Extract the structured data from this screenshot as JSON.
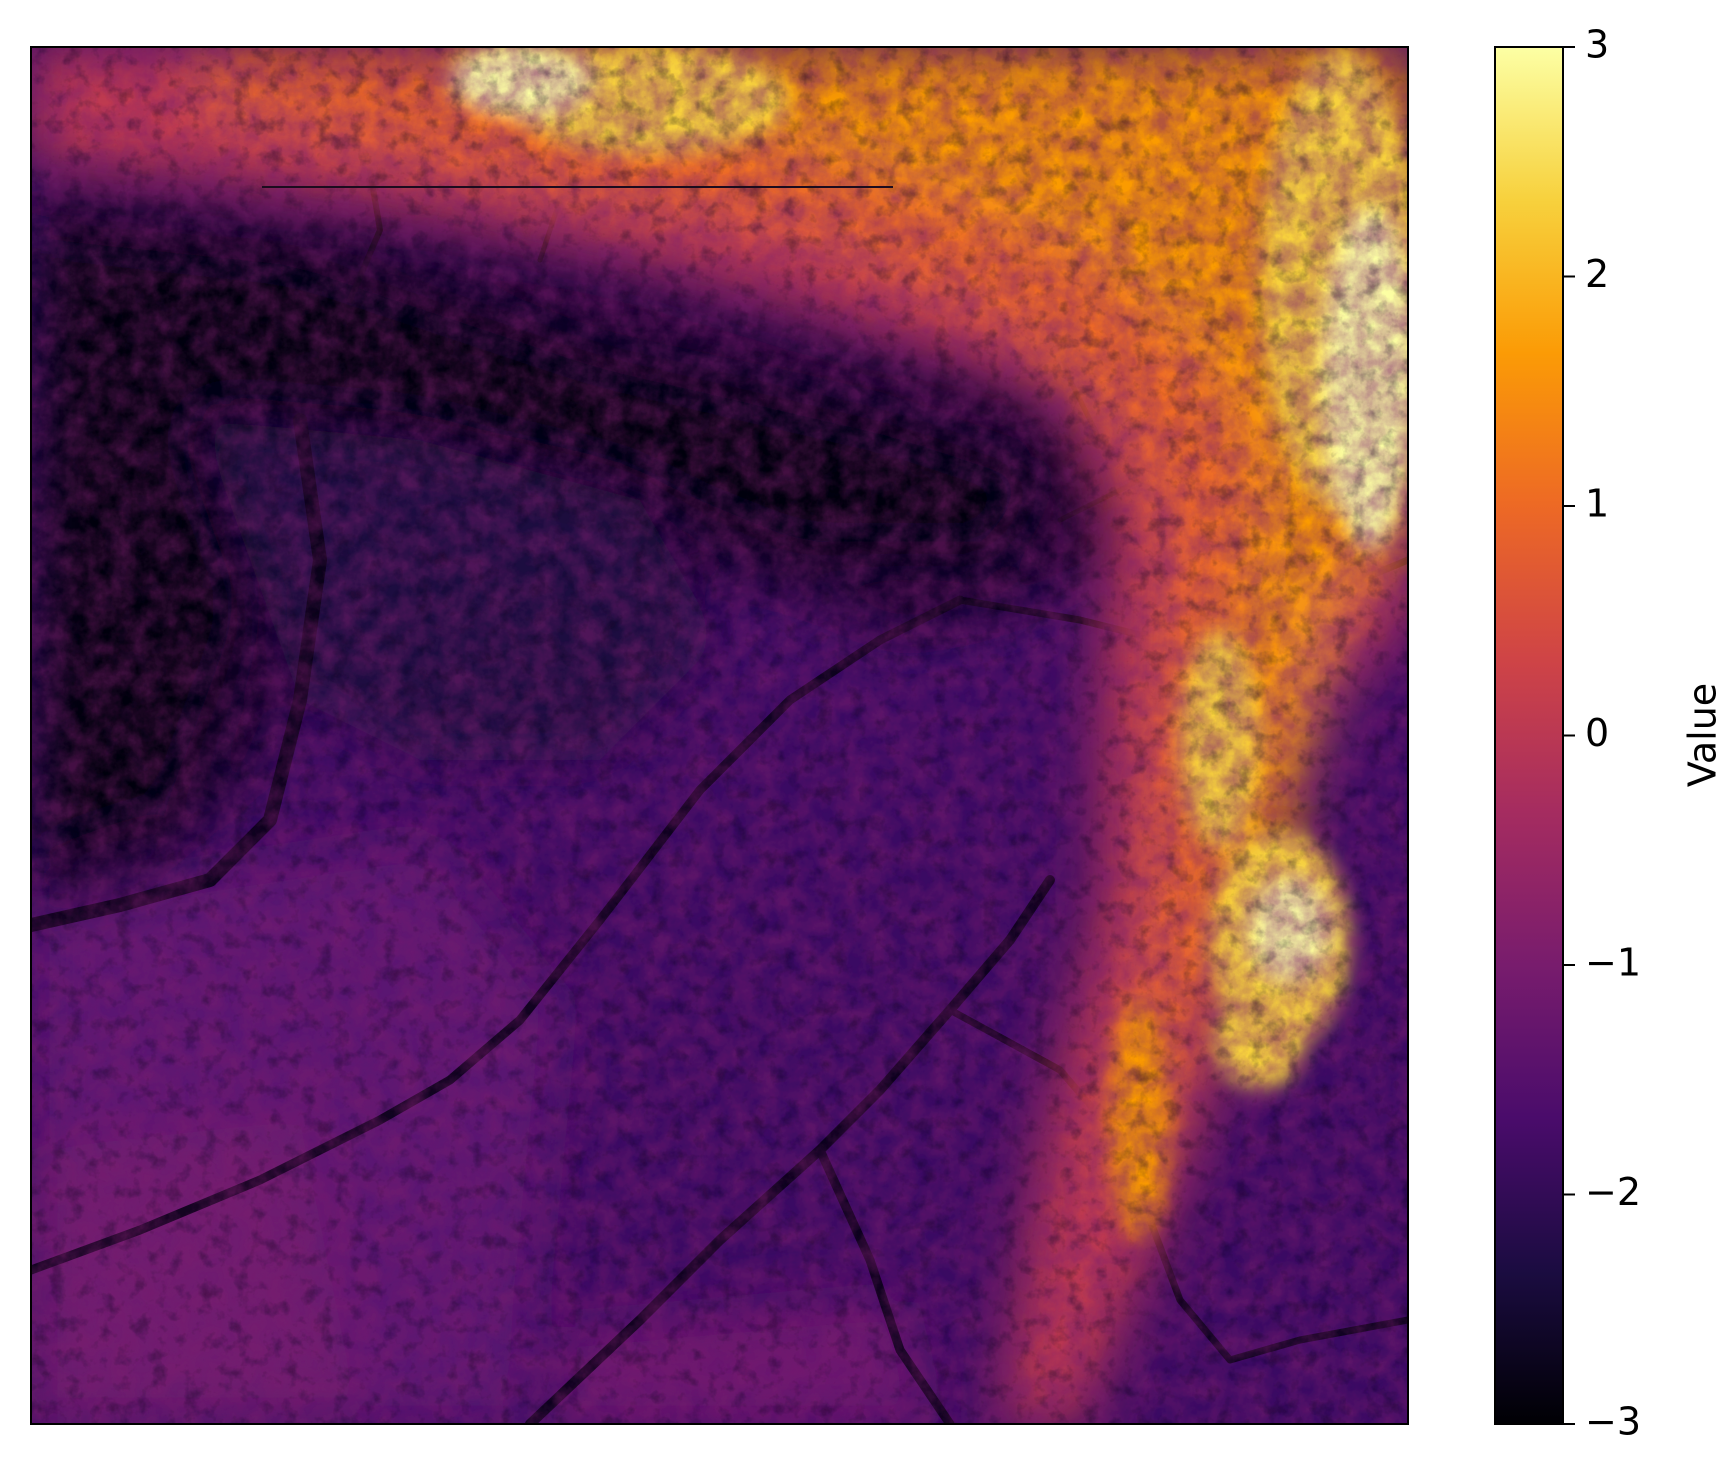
{
  "chart_data": {
    "type": "heatmap",
    "title": "",
    "xlabel": "",
    "ylabel": "",
    "x_ticks": [],
    "y_ticks": [],
    "colormap": "inferno",
    "colormap_stops": [
      "#000004",
      "#1b0c41",
      "#4a0c6b",
      "#781c6d",
      "#a52c60",
      "#cf4446",
      "#ed6925",
      "#fb9b06",
      "#f7d13d",
      "#fcffa4"
    ],
    "colorbar": {
      "label": "Value",
      "vmin": -3,
      "vmax": 3,
      "ticks": [
        -3,
        -2,
        -1,
        0,
        1,
        2,
        3
      ],
      "tick_labels": [
        "−3",
        "−2",
        "−1",
        "0",
        "1",
        "2",
        "3"
      ]
    },
    "description_of_field": {
      "low_region": "large dark basin occupying the left and centre of the map, values about -3 to -2",
      "high_region": "bright ridges along the top and right edges, values up to about 3",
      "mid_region": "purple dissected terrain across the lower half, values about -2 to -1"
    }
  }
}
